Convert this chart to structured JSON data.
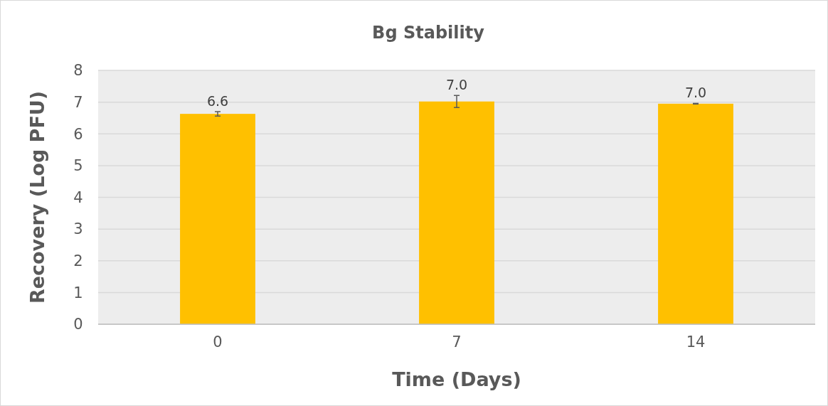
{
  "chart_data": {
    "type": "bar",
    "title": "Bg Stability",
    "xlabel": "Time (Days)",
    "ylabel": "Recovery (Log PFU)",
    "categories": [
      "0",
      "7",
      "14"
    ],
    "values": [
      6.63,
      7.02,
      6.95
    ],
    "errors": [
      0.07,
      0.19,
      0.01
    ],
    "value_labels": [
      "6.6",
      "7.0",
      "7.0"
    ],
    "color": "#ffc000",
    "ylim": [
      0,
      8
    ],
    "yticks": [
      0,
      1,
      2,
      3,
      4,
      5,
      6,
      7,
      8
    ],
    "grid": "y"
  }
}
